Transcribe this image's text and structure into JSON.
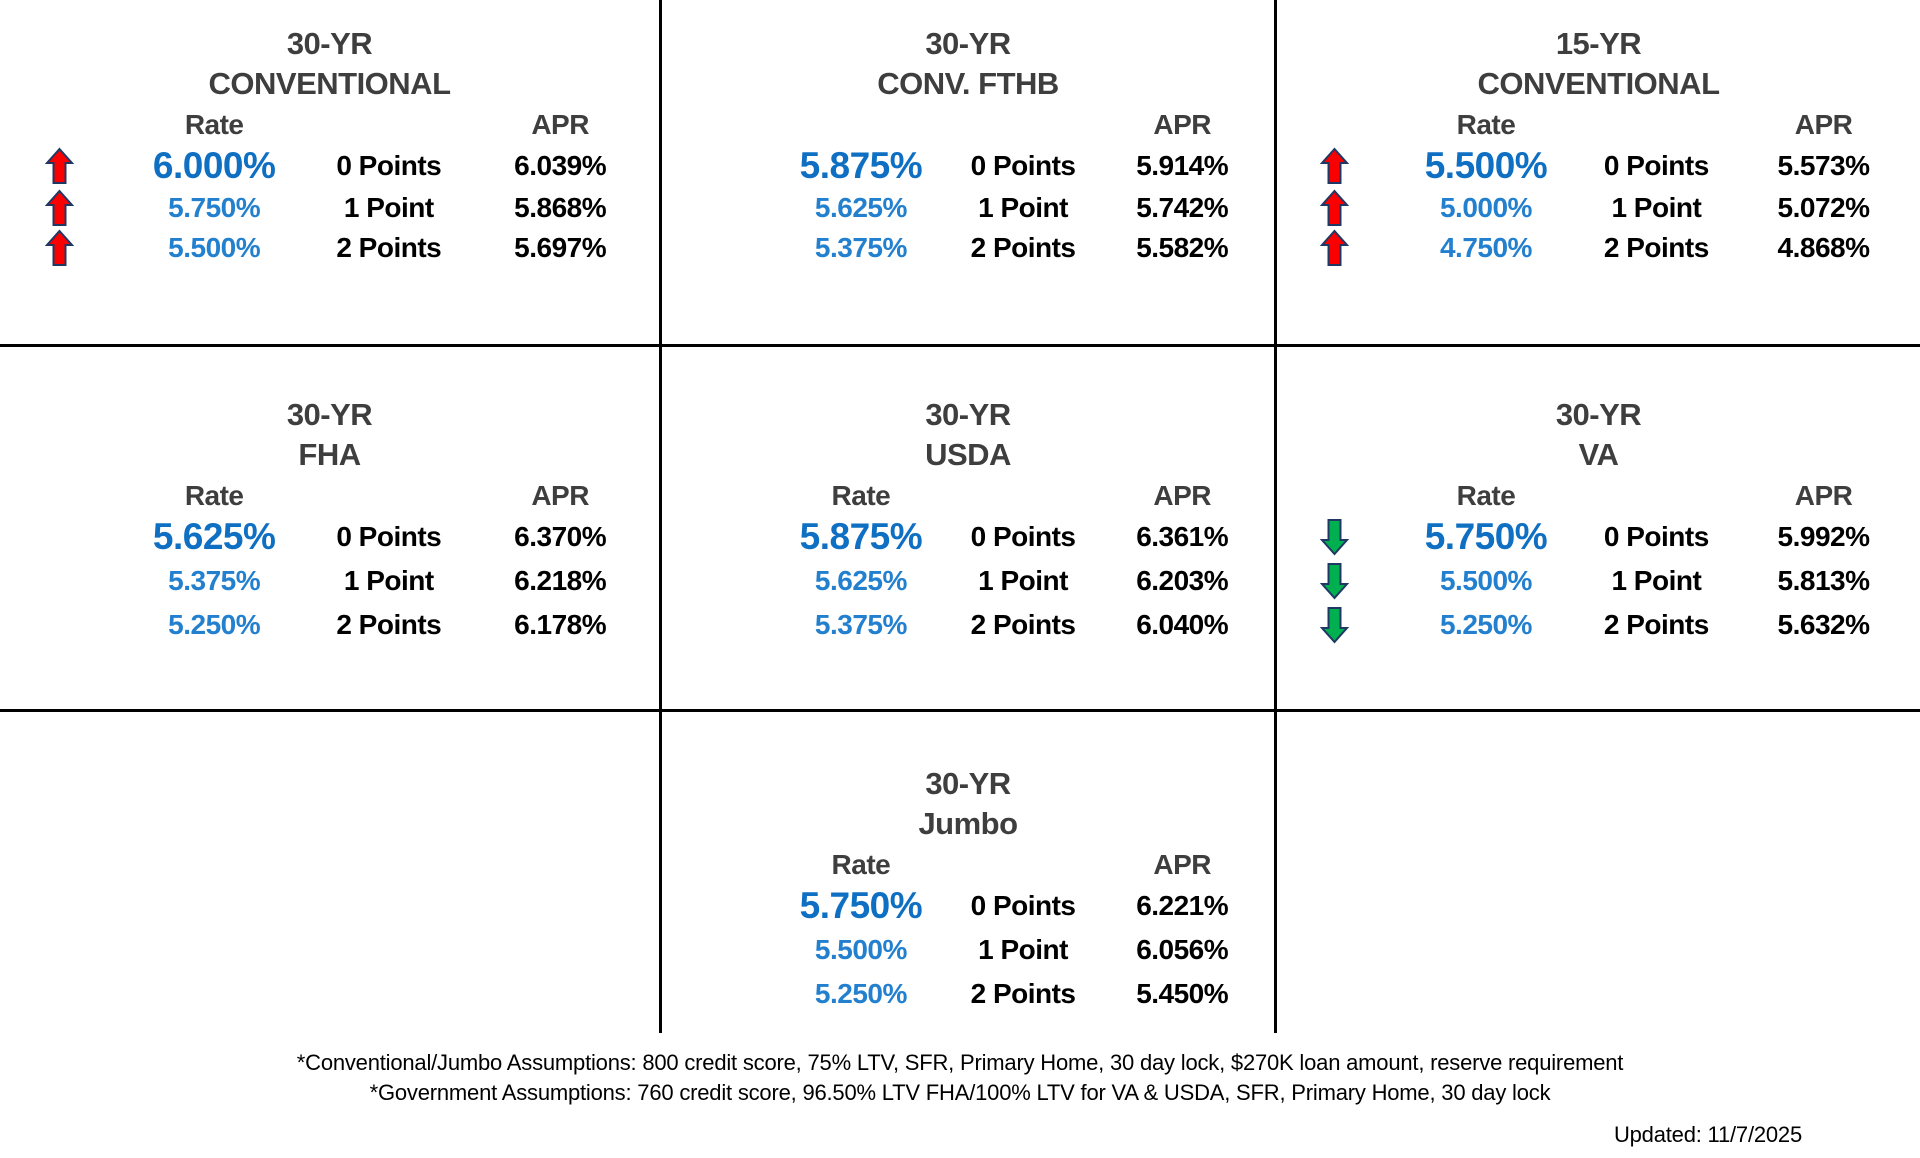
{
  "colors": {
    "rate_blue_primary": "#0f6fc2",
    "rate_blue_secondary": "#2380cf",
    "title_gray": "#3e3e3e",
    "text_black": "#000000",
    "arrow_red": "#fa0000",
    "arrow_green": "#00af50",
    "arrow_outline": "#1f3864",
    "grid_line": "#000000"
  },
  "icons": {
    "up": "rate-up-arrow-icon",
    "down": "rate-down-arrow-icon"
  },
  "panels": [
    {
      "term": "30-YR",
      "program": "CONVENTIONAL",
      "rate_header": "Rate",
      "apr_header": "APR",
      "trend": "up",
      "rows": [
        {
          "rate": "6.000%",
          "points": "0 Points",
          "apr": "6.039%"
        },
        {
          "rate": "5.750%",
          "points": "1 Point",
          "apr": "5.868%"
        },
        {
          "rate": "5.500%",
          "points": "2 Points",
          "apr": "5.697%"
        }
      ]
    },
    {
      "term": "30-YR",
      "program": "CONV. FTHB",
      "rate_header": "",
      "apr_header": "APR",
      "trend": "none",
      "rows": [
        {
          "rate": "5.875%",
          "points": "0 Points",
          "apr": "5.914%"
        },
        {
          "rate": "5.625%",
          "points": "1 Point",
          "apr": "5.742%"
        },
        {
          "rate": "5.375%",
          "points": "2 Points",
          "apr": "5.582%"
        }
      ]
    },
    {
      "term": "15-YR",
      "program": "CONVENTIONAL",
      "rate_header": "Rate",
      "apr_header": "APR",
      "trend": "up",
      "rows": [
        {
          "rate": "5.500%",
          "points": "0 Points",
          "apr": "5.573%"
        },
        {
          "rate": "5.000%",
          "points": "1 Point",
          "apr": "5.072%"
        },
        {
          "rate": "4.750%",
          "points": "2 Points",
          "apr": "4.868%"
        }
      ]
    },
    {
      "term": "30-YR",
      "program": "FHA",
      "rate_header": "Rate",
      "apr_header": "APR",
      "trend": "none",
      "rows": [
        {
          "rate": "5.625%",
          "points": "0 Points",
          "apr": "6.370%"
        },
        {
          "rate": "5.375%",
          "points": "1 Point",
          "apr": "6.218%"
        },
        {
          "rate": "5.250%",
          "points": "2 Points",
          "apr": "6.178%"
        }
      ]
    },
    {
      "term": "30-YR",
      "program": "USDA",
      "rate_header": "Rate",
      "apr_header": "APR",
      "trend": "none",
      "rows": [
        {
          "rate": "5.875%",
          "points": "0 Points",
          "apr": "6.361%"
        },
        {
          "rate": "5.625%",
          "points": "1 Point",
          "apr": "6.203%"
        },
        {
          "rate": "5.375%",
          "points": "2 Points",
          "apr": "6.040%"
        }
      ]
    },
    {
      "term": "30-YR",
      "program": "VA",
      "rate_header": "Rate",
      "apr_header": "APR",
      "trend": "down",
      "rows": [
        {
          "rate": "5.750%",
          "points": "0 Points",
          "apr": "5.992%"
        },
        {
          "rate": "5.500%",
          "points": "1 Point",
          "apr": "5.813%"
        },
        {
          "rate": "5.250%",
          "points": "2 Points",
          "apr": "5.632%"
        }
      ]
    },
    null,
    {
      "term": "30-YR",
      "program": "Jumbo",
      "rate_header": "Rate",
      "apr_header": "APR",
      "trend": "none",
      "rows": [
        {
          "rate": "5.750%",
          "points": "0 Points",
          "apr": "6.221%"
        },
        {
          "rate": "5.500%",
          "points": "1 Point",
          "apr": "6.056%"
        },
        {
          "rate": "5.250%",
          "points": "2 Points",
          "apr": "5.450%"
        }
      ]
    },
    null
  ],
  "footer": {
    "line1": "*Conventional/Jumbo Assumptions: 800 credit score, 75% LTV, SFR, Primary Home, 30 day lock, $270K loan amount, reserve requirement",
    "line2": "*Government Assumptions: 760 credit score, 96.50% LTV FHA/100% LTV for VA & USDA, SFR, Primary Home, 30 day lock",
    "updated": "Updated: 11/7/2025"
  }
}
